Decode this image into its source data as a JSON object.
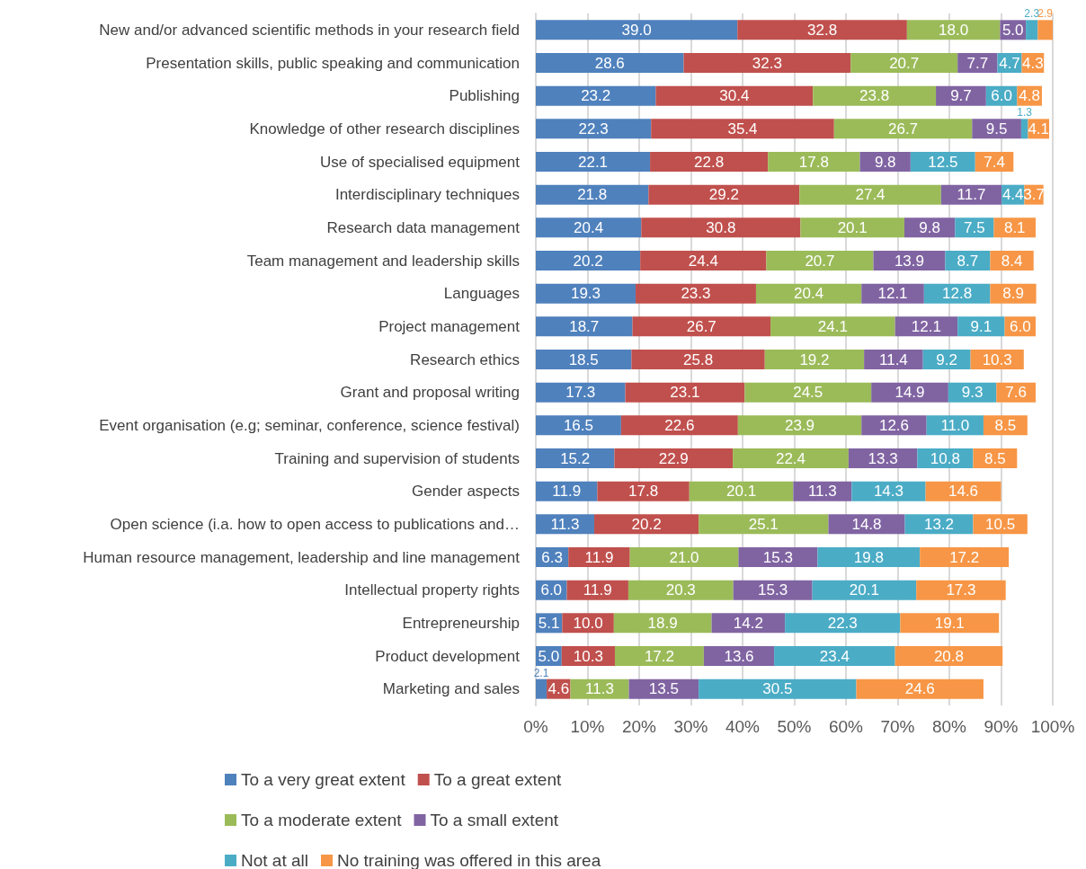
{
  "chart_data": {
    "type": "bar",
    "orientation": "horizontal",
    "stacked": true,
    "grid": "x",
    "legend": "bottom",
    "categories": [
      "New and/or advanced scientific methods in your research field",
      "Presentation skills, public speaking and communication",
      "Publishing",
      "Knowledge of other research disciplines",
      "Use of specialised equipment",
      "Interdisciplinary techniques",
      "Research data management",
      "Team management and leadership skills",
      "Languages",
      "Project management",
      "Research ethics",
      "Grant and proposal writing",
      "Event organisation (e.g; seminar, conference, science festival)",
      "Training and supervision of students",
      "Gender aspects",
      "Open science (i.a. how to open access to publications and…",
      "Human resource management, leadership and line management",
      "Intellectual property rights",
      "Entrepreneurship",
      "Product development",
      "Marketing and sales"
    ],
    "xlim": [
      0,
      100
    ],
    "xticks": [
      {
        "value": 0,
        "label": "0%"
      },
      {
        "value": 10,
        "label": "10%"
      },
      {
        "value": 20,
        "label": "20%"
      },
      {
        "value": 30,
        "label": "30%"
      },
      {
        "value": 40,
        "label": "40%"
      },
      {
        "value": 50,
        "label": "50%"
      },
      {
        "value": 60,
        "label": "60%"
      },
      {
        "value": 70,
        "label": "70%"
      },
      {
        "value": 80,
        "label": "80%"
      },
      {
        "value": 90,
        "label": "90%"
      },
      {
        "value": 100,
        "label": "100%"
      }
    ],
    "series": [
      {
        "name": "To a very great extent",
        "color": "#4f81bd",
        "values": [
          39.0,
          28.6,
          23.2,
          22.3,
          22.1,
          21.8,
          20.4,
          20.2,
          19.3,
          18.7,
          18.5,
          17.3,
          16.5,
          15.2,
          11.9,
          11.3,
          6.3,
          6.0,
          5.1,
          5.0,
          2.1
        ],
        "value_labels": [
          "39.0",
          "28.6",
          "23.2",
          "22.3",
          "22.1",
          "21.8",
          "20.4",
          "20.2",
          "19.3",
          "18.7",
          "18.5",
          "17.3",
          "16.5",
          "15.2",
          "11.9",
          "11.3",
          "6.3",
          "6.0",
          "5.1",
          "5.0",
          "2.1"
        ]
      },
      {
        "name": "To a great extent",
        "color": "#c0504d",
        "values": [
          32.8,
          32.3,
          30.4,
          35.4,
          22.8,
          29.2,
          30.8,
          24.4,
          23.3,
          26.7,
          25.8,
          23.1,
          22.6,
          22.9,
          17.8,
          20.2,
          11.9,
          11.9,
          10.0,
          10.3,
          4.6
        ],
        "value_labels": [
          "32.8",
          "32.3",
          "30.4",
          "35.4",
          "22.8",
          "29.2",
          "30.8",
          "24.4",
          "23.3",
          "26.7",
          "25.8",
          "23.1",
          "22.6",
          "22.9",
          "17.8",
          "20.2",
          "11.9",
          "11.9",
          "10.0",
          "10.3",
          "4.6"
        ]
      },
      {
        "name": "To a moderate extent",
        "color": "#9bbb59",
        "values": [
          18.0,
          20.7,
          23.8,
          26.7,
          17.8,
          27.4,
          20.1,
          20.7,
          20.4,
          24.1,
          19.2,
          24.5,
          23.9,
          22.4,
          20.1,
          25.1,
          21.0,
          20.3,
          18.9,
          17.2,
          11.3
        ],
        "value_labels": [
          "18.0",
          "20.7",
          "23.8",
          "26.7",
          "17.8",
          "27.4",
          "20.1",
          "20.7",
          "20.4",
          "24.1",
          "19.2",
          "24.5",
          "23.9",
          "22.4",
          "20.1",
          "25.1",
          "21.0",
          "20.3",
          "18.9",
          "17.2",
          "11.3"
        ]
      },
      {
        "name": "To a small extent",
        "color": "#8064a2",
        "values": [
          5.0,
          7.7,
          9.7,
          9.5,
          9.8,
          11.7,
          9.8,
          13.9,
          12.1,
          12.1,
          11.4,
          14.9,
          12.6,
          13.3,
          11.3,
          14.8,
          15.3,
          15.3,
          14.2,
          13.6,
          13.5
        ],
        "value_labels": [
          "5.0",
          "7.7",
          "9.7",
          "9.5",
          "9.8",
          "11.7",
          "9.8",
          "13.9",
          "12.1",
          "12.1",
          "11.4",
          "14.9",
          "12.6",
          "13.3",
          "11.3",
          "14.8",
          "15.3",
          "15.3",
          "14.2",
          "13.6",
          "13.5"
        ]
      },
      {
        "name": "Not at all",
        "color": "#4bacc6",
        "values": [
          2.3,
          4.7,
          6.0,
          1.3,
          12.5,
          4.4,
          7.5,
          8.7,
          12.8,
          9.1,
          9.2,
          9.3,
          11.0,
          10.8,
          14.3,
          13.2,
          19.8,
          20.1,
          22.3,
          23.4,
          30.5
        ],
        "value_labels": [
          "2.3",
          "4.7",
          "6.0",
          "1.3",
          "12.5",
          "4.4",
          "7.5",
          "8.7",
          "12.8",
          "9.1",
          "9.2",
          "9.3",
          "11.0",
          "10.8",
          "14.3",
          "13.2",
          "19.8",
          "20.1",
          "22.3",
          "23.4",
          "30.5"
        ]
      },
      {
        "name": "No training was offered in this area",
        "color": "#f79646",
        "values": [
          2.9,
          4.3,
          4.8,
          4.1,
          7.4,
          3.7,
          8.1,
          8.4,
          8.9,
          6.0,
          10.3,
          7.6,
          8.5,
          8.5,
          14.6,
          10.5,
          17.2,
          17.3,
          19.1,
          20.8,
          24.6
        ],
        "value_labels": [
          "2.9",
          "4.3",
          "4.8",
          "4.1",
          "7.4",
          "3.7",
          "8.1",
          "8.4",
          "8.9",
          "6.0",
          "10.3",
          "7.6",
          "8.5",
          "8.5",
          "14.6",
          "10.5",
          "17.2",
          "17.3",
          "19.1",
          "20.8",
          "24.6"
        ]
      }
    ]
  }
}
